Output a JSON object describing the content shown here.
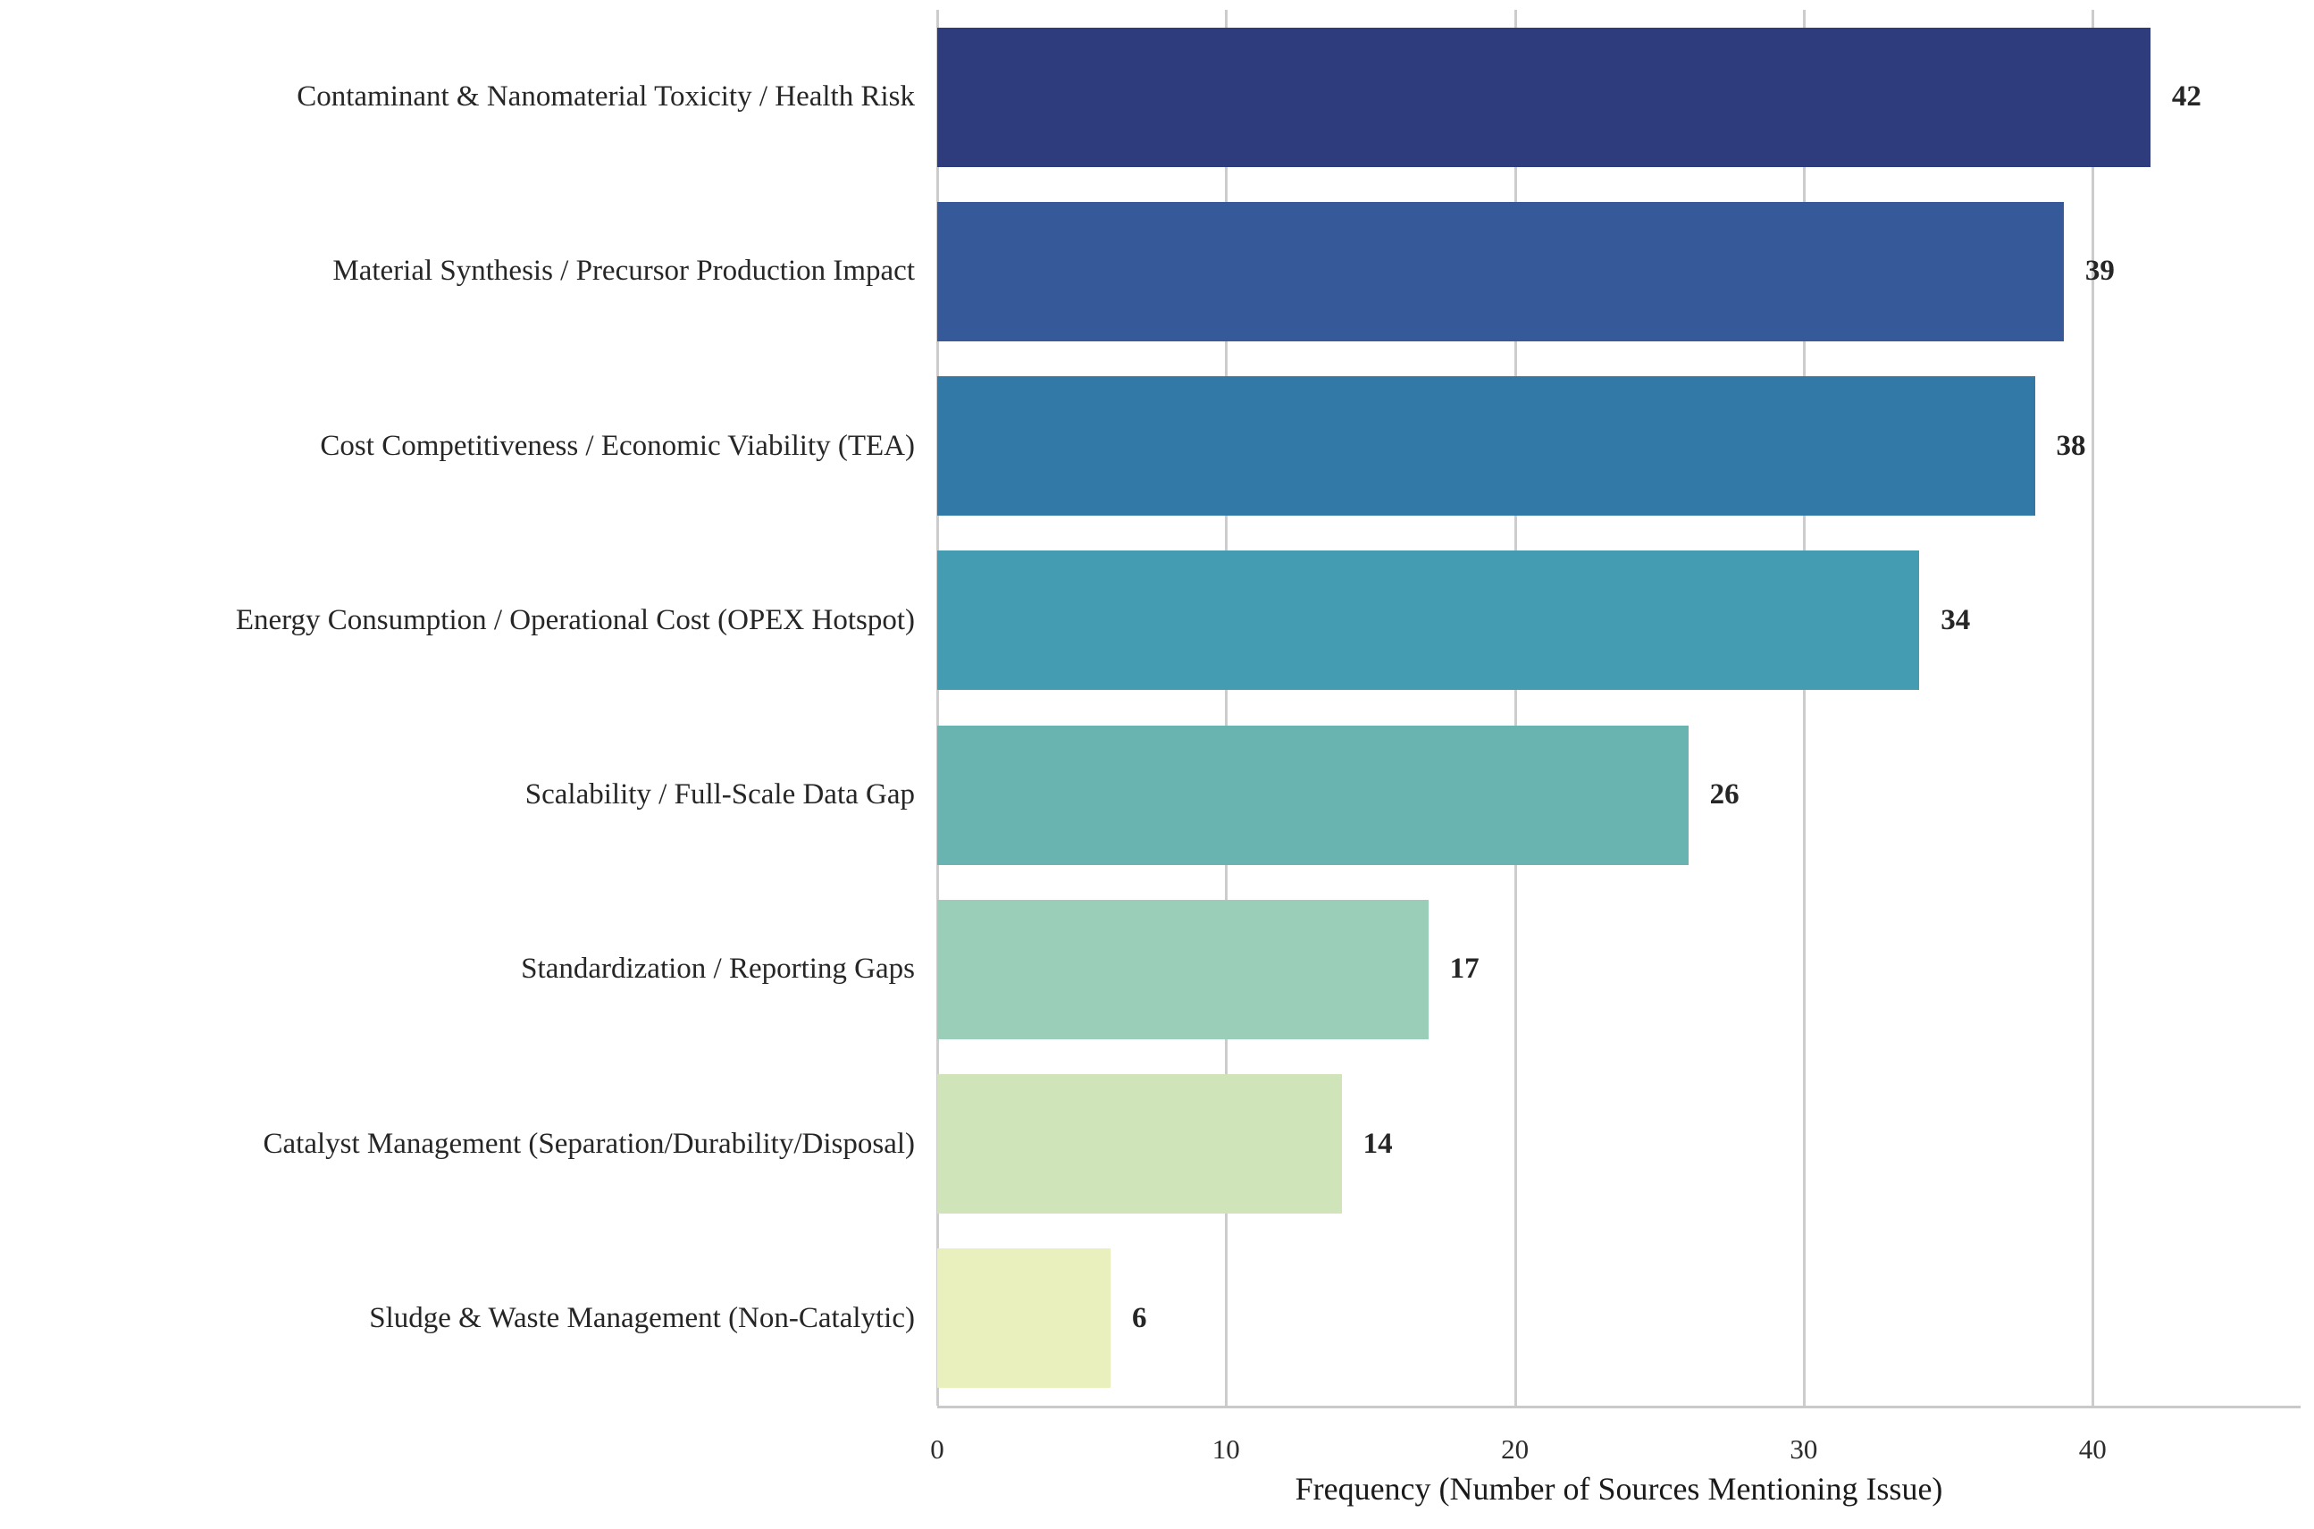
{
  "chart_data": {
    "type": "bar",
    "orientation": "horizontal",
    "title": "",
    "xlabel": "Frequency (Number of Sources Mentioning Issue)",
    "ylabel": "",
    "categories": [
      "Contaminant & Nanomaterial Toxicity / Health Risk",
      "Material Synthesis / Precursor Production Impact",
      "Cost Competitiveness / Economic Viability (TEA)",
      "Energy Consumption / Operational Cost (OPEX Hotspot)",
      "Scalability / Full-Scale Data Gap",
      "Standardization / Reporting Gaps",
      "Catalyst Management (Separation/Durability/Disposal)",
      "Sludge & Waste Management (Non-Catalytic)"
    ],
    "values": [
      42,
      39,
      38,
      34,
      26,
      17,
      14,
      6
    ],
    "bar_colors": [
      "#2e3c7e",
      "#365a99",
      "#3379a8",
      "#449cb2",
      "#69b4b1",
      "#9bceb8",
      "#cfe5b9",
      "#e9f0bd"
    ],
    "value_label_color": "#262626",
    "xticks": [
      0,
      10,
      20,
      30,
      40
    ],
    "xlim": [
      0,
      47.2
    ],
    "grid": true,
    "grid_color": "#cccccc",
    "legend": "none",
    "background": "#ffffff",
    "value_labels_shown": true
  }
}
